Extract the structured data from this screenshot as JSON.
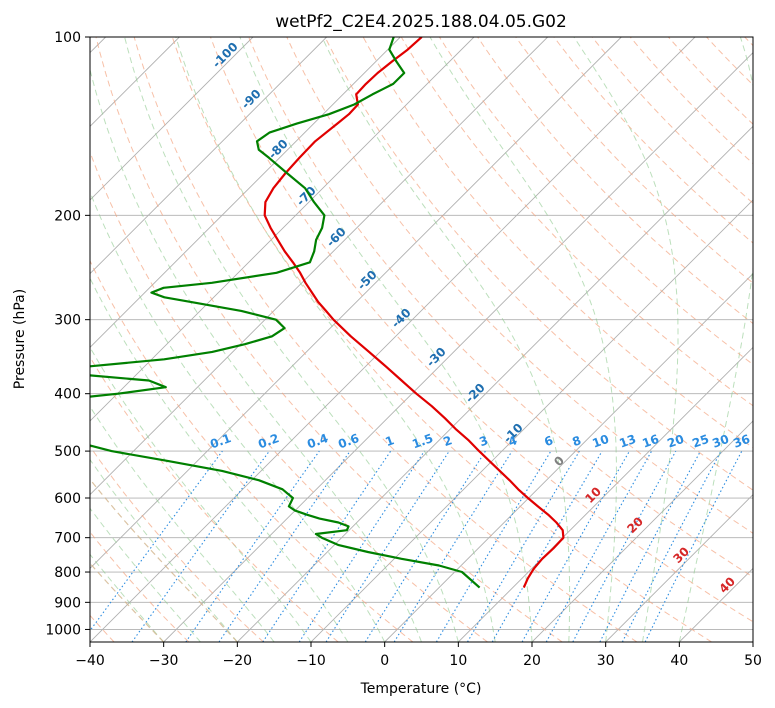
{
  "chart_data": {
    "type": "line",
    "title": "wetPf2_C2E4.2025.188.04.05.G02",
    "xlabel": "Temperature (°C)",
    "ylabel": "Pressure (hPa)",
    "xlim": [
      -40,
      50
    ],
    "ylim": [
      1050,
      100
    ],
    "y_scale": "log",
    "grid": true,
    "x_ticks": [
      -40,
      -30,
      -20,
      -10,
      0,
      10,
      20,
      30,
      40,
      50
    ],
    "y_ticks": [
      100,
      200,
      300,
      400,
      500,
      600,
      700,
      800,
      900,
      1000
    ],
    "series": [
      {
        "color": "#e00000",
        "pressure": [
          850,
          820,
          790,
          760,
          730,
          700,
          680,
          660,
          640,
          620,
          600,
          580,
          560,
          540,
          520,
          500,
          480,
          460,
          440,
          420,
          400,
          380,
          360,
          340,
          320,
          300,
          290,
          280,
          270,
          260,
          250,
          240,
          230,
          220,
          210,
          200,
          190,
          180,
          170,
          160,
          150,
          140,
          135,
          130,
          125,
          120,
          115,
          110,
          105,
          100
        ],
        "temperature": [
          11.5,
          10.8,
          10.3,
          10.1,
          10.2,
          10.1,
          9.0,
          7.1,
          4.9,
          2.4,
          -0.1,
          -2.6,
          -5.0,
          -7.6,
          -10.3,
          -13.1,
          -15.9,
          -19.1,
          -22.2,
          -25.6,
          -29.4,
          -33.2,
          -37.2,
          -41.5,
          -46.1,
          -50.7,
          -52.9,
          -55.2,
          -57.3,
          -59.5,
          -61.6,
          -64.0,
          -66.6,
          -69.1,
          -71.7,
          -74.2,
          -75.9,
          -76.7,
          -77.1,
          -77.3,
          -77.4,
          -76.8,
          -76.5,
          -76.6,
          -78.2,
          -78.3,
          -78.2,
          -77.8,
          -77.3,
          -77.1
        ]
      },
      {
        "color": "#008000",
        "pressure": [
          850,
          800,
          780,
          760,
          740,
          720,
          700,
          690,
          680,
          670,
          660,
          650,
          640,
          630,
          620,
          610,
          600,
          580,
          560,
          540,
          520,
          500,
          480,
          460,
          440,
          430,
          420,
          410,
          400,
          390,
          380,
          370,
          365,
          360,
          350,
          340,
          330,
          320,
          310,
          300,
          290,
          280,
          275,
          270,
          265,
          260,
          250,
          240,
          230,
          220,
          210,
          200,
          190,
          180,
          170,
          160,
          155,
          150,
          145,
          140,
          135,
          130,
          125,
          120,
          115,
          110,
          105,
          100
        ],
        "temperature": [
          5.5,
          1.0,
          -3.0,
          -9.0,
          -14.5,
          -19.5,
          -22.7,
          -24.0,
          -20.3,
          -20.6,
          -22.5,
          -25.6,
          -27.9,
          -30.0,
          -31.4,
          -31.7,
          -32.0,
          -34.6,
          -39.0,
          -45.3,
          -53.8,
          -63.0,
          -69.9,
          -75.1,
          -78.7,
          -80.1,
          -80.5,
          -77.2,
          -69.9,
          -64.3,
          -67.5,
          -79.2,
          -80.4,
          -77.8,
          -68.3,
          -62.8,
          -59.4,
          -56.8,
          -56.2,
          -58.5,
          -64.4,
          -72.5,
          -76.7,
          -79.1,
          -78.1,
          -72.2,
          -64.8,
          -61.7,
          -62.6,
          -63.9,
          -64.7,
          -66.1,
          -69.3,
          -72.4,
          -76.8,
          -81.4,
          -83.9,
          -85.3,
          -84.8,
          -82.3,
          -79.2,
          -77.1,
          -76.0,
          -74.6,
          -74.6,
          -77.2,
          -79.8,
          -80.9
        ]
      }
    ],
    "dry_adiabat_labels": [
      "-100",
      "-90",
      "-80",
      "-70",
      "-60",
      "-50",
      "-40",
      "-30",
      "-20",
      "-10",
      "0",
      "10",
      "20",
      "30",
      "40"
    ],
    "mixing_ratio_labels": [
      "0.1",
      "0.2",
      "0.4",
      "0.6",
      "1",
      "1.5",
      "2",
      "3",
      "4",
      "6",
      "8",
      "10",
      "13",
      "16",
      "20",
      "25",
      "30",
      "36"
    ]
  }
}
